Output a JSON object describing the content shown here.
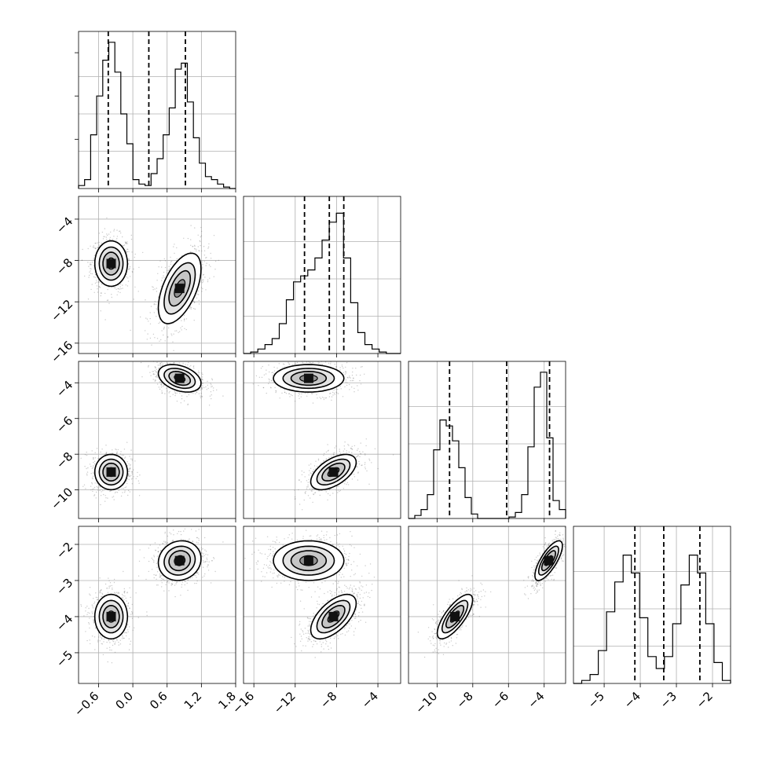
{
  "figure": {
    "type": "corner-plot",
    "panels_per_side": 4,
    "grid": true,
    "quantile_lines": "dashed"
  },
  "chart_data": {
    "type": "corner",
    "parameters": [
      {
        "range": [
          -0.95,
          1.8
        ],
        "ticks": [
          "−0.6",
          "0.0",
          "0.6",
          "1.2",
          "1.8"
        ],
        "tick_values": [
          -0.6,
          0.0,
          0.6,
          1.2,
          1.8
        ],
        "quantiles": [
          -0.43,
          0.28,
          0.92
        ],
        "hist_counts": [
          0.02,
          0.06,
          0.36,
          0.62,
          0.86,
          0.98,
          0.78,
          0.5,
          0.3,
          0.06,
          0.03,
          0.02,
          0.1,
          0.2,
          0.36,
          0.54,
          0.8,
          0.84,
          0.58,
          0.34,
          0.17,
          0.08,
          0.06,
          0.03,
          0.01,
          0.0
        ]
      },
      {
        "range": [
          -17.0,
          -1.8
        ],
        "ticks": [
          "−16",
          "−12",
          "−8",
          "−4"
        ],
        "tick_values": [
          -16,
          -12,
          -8,
          -4
        ],
        "quantiles": [
          -11.1,
          -8.7,
          -7.3
        ],
        "hist_counts": [
          0.0,
          0.01,
          0.03,
          0.06,
          0.1,
          0.2,
          0.36,
          0.48,
          0.52,
          0.56,
          0.64,
          0.76,
          0.88,
          0.94,
          0.64,
          0.34,
          0.14,
          0.06,
          0.03,
          0.01,
          0.0,
          0.0
        ]
      },
      {
        "range": [
          -11.6,
          -2.8
        ],
        "ticks": [
          "−10",
          "−8",
          "−6",
          "−4"
        ],
        "tick_values": [
          -10,
          -8,
          -6,
          -4
        ],
        "quantiles": [
          -9.3,
          -6.1,
          -3.7
        ],
        "hist_counts": [
          0.0,
          0.02,
          0.06,
          0.16,
          0.46,
          0.66,
          0.62,
          0.52,
          0.34,
          0.14,
          0.03,
          0.0,
          0.0,
          0.0,
          0.0,
          0.0,
          0.01,
          0.04,
          0.16,
          0.48,
          0.88,
          0.98,
          0.54,
          0.12,
          0.06
        ]
      },
      {
        "range": [
          -5.85,
          -1.5
        ],
        "ticks": [
          "−5",
          "−4",
          "−3",
          "−2"
        ],
        "tick_values": [
          -5,
          -4,
          -3,
          -2
        ],
        "quantiles": [
          -4.15,
          -3.35,
          -2.35
        ],
        "hist_counts": [
          0.0,
          0.02,
          0.06,
          0.22,
          0.48,
          0.68,
          0.86,
          0.74,
          0.44,
          0.18,
          0.1,
          0.18,
          0.4,
          0.66,
          0.86,
          0.74,
          0.4,
          0.14,
          0.02
        ]
      }
    ],
    "modes": [
      {
        "center": [
          -0.38,
          -8.3,
          -9.0,
          -4.0
        ],
        "sigma": [
          0.13,
          1.0,
          0.45,
          0.28
        ],
        "corr": [
          [
            0,
            1,
            0.0
          ],
          [
            0,
            2,
            0.0
          ],
          [
            0,
            3,
            0.0
          ],
          [
            1,
            2,
            0.55
          ],
          [
            1,
            3,
            0.6
          ],
          [
            2,
            3,
            0.75
          ]
        ],
        "weight": 0.5
      },
      {
        "center": [
          0.82,
          -10.7,
          -3.75,
          -2.45
        ],
        "sigma": [
          0.17,
          1.55,
          0.35,
          0.25
        ],
        "corr": [
          [
            0,
            1,
            0.55
          ],
          [
            0,
            2,
            -0.35
          ],
          [
            0,
            3,
            0.1
          ],
          [
            1,
            2,
            0.0
          ],
          [
            1,
            3,
            0.0
          ],
          [
            2,
            3,
            0.75
          ]
        ],
        "weight": 0.5
      }
    ]
  }
}
